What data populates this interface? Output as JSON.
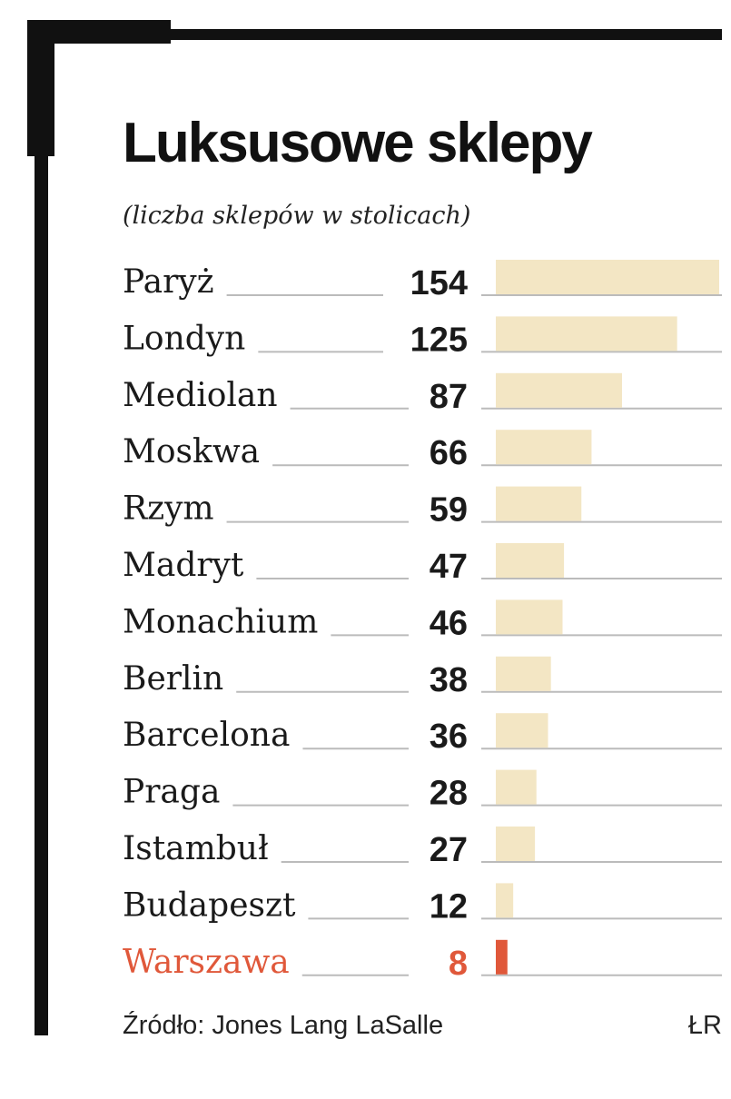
{
  "chart_data": {
    "type": "bar",
    "title": "Luksusowe sklepy",
    "subtitle": "(liczba sklepów w stolicach)",
    "categories": [
      "Paryż",
      "Londyn",
      "Mediolan",
      "Moskwa",
      "Rzym",
      "Madryt",
      "Monachium",
      "Berlin",
      "Barcelona",
      "Praga",
      "Istambuł",
      "Budapeszt",
      "Warszawa"
    ],
    "values": [
      154,
      125,
      87,
      66,
      59,
      47,
      46,
      38,
      36,
      28,
      27,
      12,
      8
    ],
    "colors": [
      "#f3e6c4",
      "#f3e6c4",
      "#f3e6c4",
      "#f3e6c4",
      "#f3e6c4",
      "#f3e6c4",
      "#f3e6c4",
      "#f3e6c4",
      "#f3e6c4",
      "#f3e6c4",
      "#f3e6c4",
      "#f3e6c4",
      "#e0583a"
    ],
    "label_colors": [
      "#1a1a1a",
      "#1a1a1a",
      "#1a1a1a",
      "#1a1a1a",
      "#1a1a1a",
      "#1a1a1a",
      "#1a1a1a",
      "#1a1a1a",
      "#1a1a1a",
      "#1a1a1a",
      "#1a1a1a",
      "#1a1a1a",
      "#e0583a"
    ],
    "source": "Źródło: Jones Lang LaSalle",
    "credit": "ŁR"
  }
}
